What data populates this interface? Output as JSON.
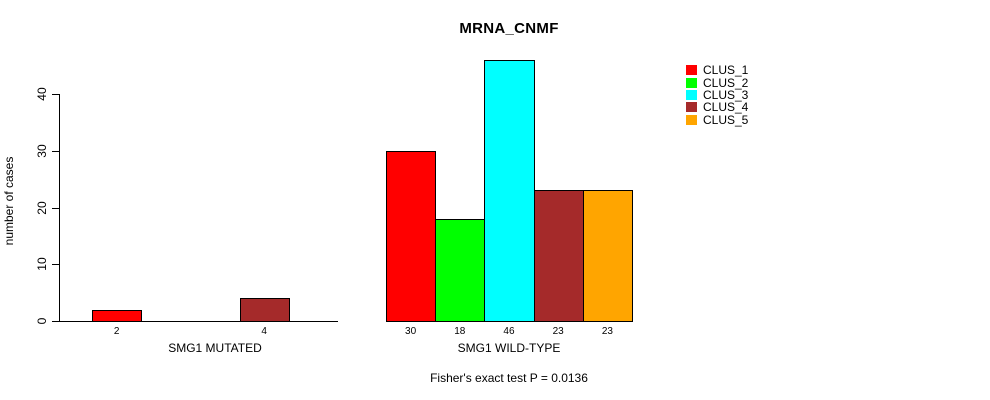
{
  "title": "MRNA_CNMF",
  "footnote": "Fisher's exact test P = 0.0136",
  "y_axis": {
    "label": "number of cases",
    "ticks": [
      "0",
      "10",
      "20",
      "30",
      "40"
    ]
  },
  "legend": {
    "items": [
      {
        "label": "CLUS_1",
        "color": "#FF0000"
      },
      {
        "label": "CLUS_2",
        "color": "#00FF00"
      },
      {
        "label": "CLUS_3",
        "color": "#00FFFF"
      },
      {
        "label": "CLUS_4",
        "color": "#A52A2A"
      },
      {
        "label": "CLUS_5",
        "color": "#FFA500"
      }
    ]
  },
  "chart_data": {
    "type": "bar",
    "title": "MRNA_CNMF",
    "ylabel": "number of cases",
    "ylim": [
      0,
      46
    ],
    "y_ticks": [
      0,
      10,
      20,
      30,
      40
    ],
    "grid": false,
    "legend_position": "top-right",
    "legend_entries": [
      "CLUS_1",
      "CLUS_2",
      "CLUS_3",
      "CLUS_4",
      "CLUS_5"
    ],
    "colors": [
      "#FF0000",
      "#00FF00",
      "#00FFFF",
      "#A52A2A",
      "#FFA500"
    ],
    "groups": [
      {
        "xlabel": "SMG1 MUTATED",
        "categories": [
          "CLUS_1",
          "CLUS_2",
          "CLUS_3",
          "CLUS_4",
          "CLUS_5"
        ],
        "values": [
          2,
          0,
          0,
          4,
          0
        ],
        "bar_value_labels": [
          "2",
          "",
          "",
          "4",
          ""
        ]
      },
      {
        "xlabel": "SMG1 WILD-TYPE",
        "categories": [
          "CLUS_1",
          "CLUS_2",
          "CLUS_3",
          "CLUS_4",
          "CLUS_5"
        ],
        "values": [
          30,
          18,
          46,
          23,
          23
        ],
        "bar_value_labels": [
          "30",
          "18",
          "46",
          "23",
          "23"
        ]
      }
    ],
    "annotation": "Fisher's exact test P = 0.0136"
  }
}
